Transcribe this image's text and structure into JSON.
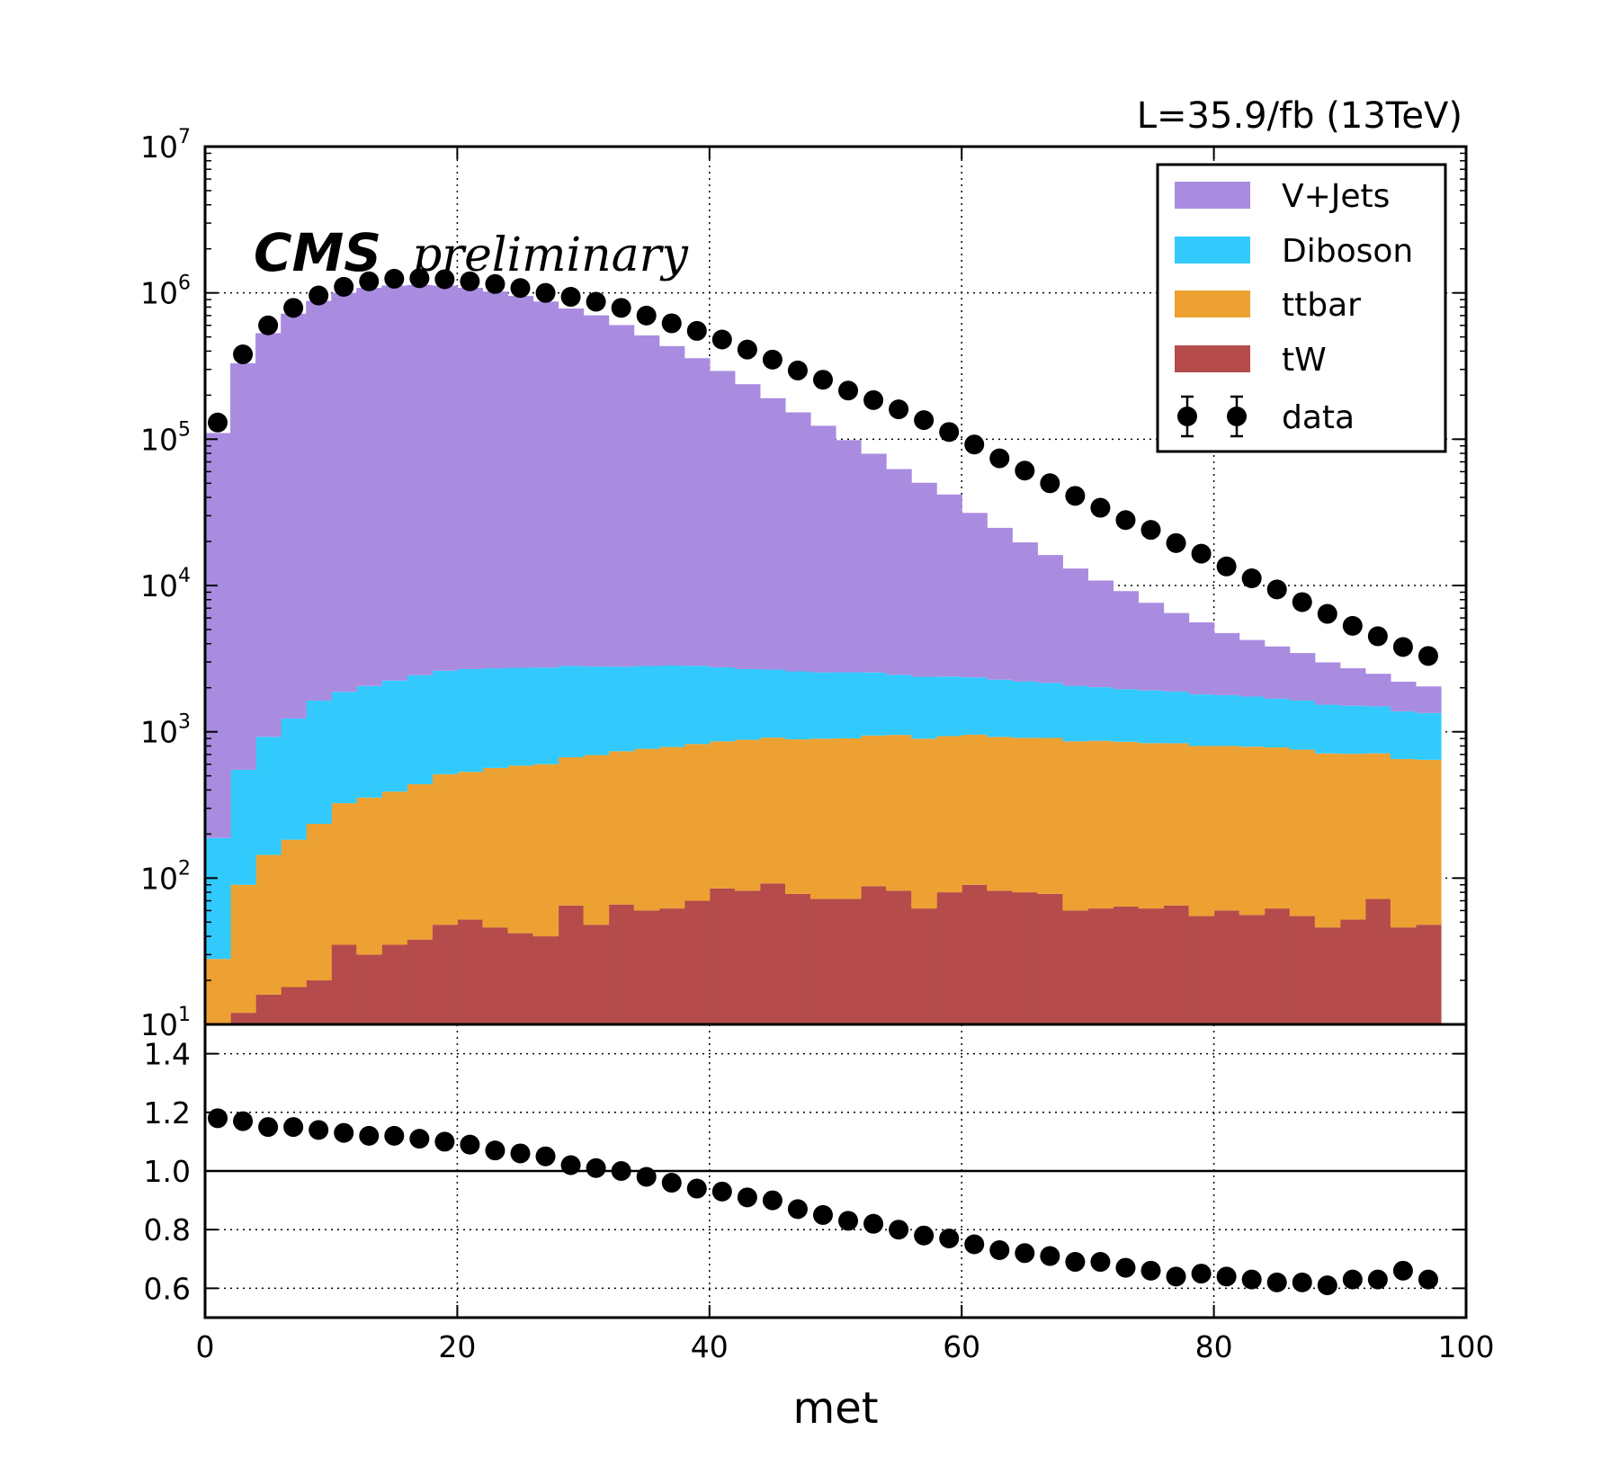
{
  "chart_data": [
    {
      "type": "bar",
      "stacked": true,
      "log_y": true,
      "grid": true,
      "legend_placement": "top-right",
      "header_right": "L=35.9/fb (13TeV)",
      "label_bold": "CMS",
      "label_italic": "preliminary",
      "x": [
        1,
        3,
        5,
        7,
        9,
        11,
        13,
        15,
        17,
        19,
        21,
        23,
        25,
        27,
        29,
        31,
        33,
        35,
        37,
        39,
        41,
        43,
        45,
        47,
        49,
        51,
        53,
        55,
        57,
        59,
        61,
        63,
        65,
        67,
        69,
        71,
        73,
        75,
        77,
        79,
        81,
        83,
        85,
        87,
        89,
        91,
        93,
        95,
        97
      ],
      "xlim": [
        0,
        100
      ],
      "ylim": [
        10,
        10000000
      ],
      "y_ticks": [
        {
          "base": "10",
          "exp": "1",
          "value": 10
        },
        {
          "base": "10",
          "exp": "2",
          "value": 100
        },
        {
          "base": "10",
          "exp": "3",
          "value": 1000
        },
        {
          "base": "10",
          "exp": "4",
          "value": 10000
        },
        {
          "base": "10",
          "exp": "5",
          "value": 100000
        },
        {
          "base": "10",
          "exp": "6",
          "value": 1000000
        },
        {
          "base": "10",
          "exp": "7",
          "value": 10000000
        }
      ],
      "series": [
        {
          "name": "tW",
          "color": "#b54b4b",
          "values": [
            0,
            12,
            16,
            18,
            20,
            35,
            30,
            35,
            38,
            48,
            52,
            46,
            42,
            40,
            65,
            48,
            66,
            60,
            62,
            70,
            85,
            82,
            92,
            78,
            72,
            72,
            88,
            82,
            62,
            80,
            90,
            82,
            80,
            78,
            60,
            62,
            64,
            62,
            65,
            55,
            60,
            56,
            62,
            55,
            46,
            52,
            72,
            46,
            48
          ]
        },
        {
          "name": "ttbar",
          "color": "#eda132",
          "values": [
            28,
            78,
            128,
            165,
            215,
            290,
            325,
            355,
            400,
            465,
            480,
            520,
            545,
            560,
            605,
            645,
            670,
            705,
            725,
            755,
            775,
            800,
            820,
            810,
            825,
            830,
            855,
            870,
            835,
            855,
            865,
            840,
            830,
            830,
            800,
            805,
            790,
            775,
            770,
            745,
            740,
            735,
            720,
            700,
            665,
            655,
            640,
            605,
            595
          ]
        },
        {
          "name": "Diboson",
          "color": "#32cafd",
          "values": [
            160,
            460,
            780,
            1050,
            1400,
            1550,
            1700,
            1850,
            2000,
            2100,
            2150,
            2150,
            2150,
            2150,
            2150,
            2100,
            2050,
            2050,
            2050,
            2000,
            1900,
            1800,
            1750,
            1700,
            1650,
            1650,
            1600,
            1500,
            1480,
            1450,
            1400,
            1350,
            1300,
            1250,
            1200,
            1150,
            1100,
            1080,
            1050,
            1000,
            980,
            950,
            900,
            880,
            820,
            800,
            780,
            730,
            700
          ]
        },
        {
          "name": "V+Jets",
          "color": "#a98ce0",
          "values": [
            110000,
            330000,
            530000,
            720000,
            880000,
            1000000,
            1080000,
            1120000,
            1130000,
            1120000,
            1080000,
            1020000,
            950000,
            870000,
            780000,
            700000,
            600000,
            510000,
            430000,
            355000,
            290000,
            235000,
            188000,
            150000,
            121000,
            96000,
            77000,
            60000,
            48000,
            39500,
            29000,
            22500,
            17500,
            14000,
            11000,
            8800,
            7200,
            5700,
            4600,
            3800,
            2950,
            2500,
            2150,
            1820,
            1450,
            1210,
            1000,
            820,
            700
          ]
        }
      ],
      "data_series": {
        "name": "data",
        "values": [
          130000,
          380000,
          600000,
          790000,
          960000,
          1100000,
          1200000,
          1250000,
          1260000,
          1240000,
          1200000,
          1150000,
          1080000,
          1000000,
          940000,
          870000,
          790000,
          700000,
          620000,
          550000,
          480000,
          410000,
          350000,
          295000,
          255000,
          215000,
          185000,
          160000,
          135000,
          112000,
          92000,
          74000,
          61000,
          50000,
          41000,
          34000,
          28000,
          24000,
          19500,
          16500,
          13500,
          11200,
          9400,
          7700,
          6400,
          5300,
          4500,
          3800,
          3300
        ]
      }
    },
    {
      "type": "scatter",
      "xlabel": "met",
      "xlim": [
        0,
        100
      ],
      "ylim": [
        0.5,
        1.5
      ],
      "reference_line": 1.0,
      "grid": true,
      "x_ticks": [
        "0",
        "20",
        "40",
        "60",
        "80",
        "100"
      ],
      "y_ticks": [
        "0.6",
        "0.8",
        "1.0",
        "1.2",
        "1.4"
      ],
      "x": [
        1,
        3,
        5,
        7,
        9,
        11,
        13,
        15,
        17,
        19,
        21,
        23,
        25,
        27,
        29,
        31,
        33,
        35,
        37,
        39,
        41,
        43,
        45,
        47,
        49,
        51,
        53,
        55,
        57,
        59,
        61,
        63,
        65,
        67,
        69,
        71,
        73,
        75,
        77,
        79,
        81,
        83,
        85,
        87,
        89,
        91,
        93,
        95,
        97
      ],
      "ratio": [
        1.18,
        1.17,
        1.15,
        1.15,
        1.14,
        1.13,
        1.12,
        1.12,
        1.11,
        1.1,
        1.09,
        1.07,
        1.06,
        1.05,
        1.02,
        1.01,
        1.0,
        0.98,
        0.96,
        0.94,
        0.93,
        0.91,
        0.9,
        0.87,
        0.85,
        0.83,
        0.82,
        0.8,
        0.78,
        0.77,
        0.75,
        0.73,
        0.72,
        0.71,
        0.69,
        0.69,
        0.67,
        0.66,
        0.64,
        0.65,
        0.64,
        0.63,
        0.62,
        0.62,
        0.61,
        0.63,
        0.63,
        0.66,
        0.63
      ]
    }
  ]
}
